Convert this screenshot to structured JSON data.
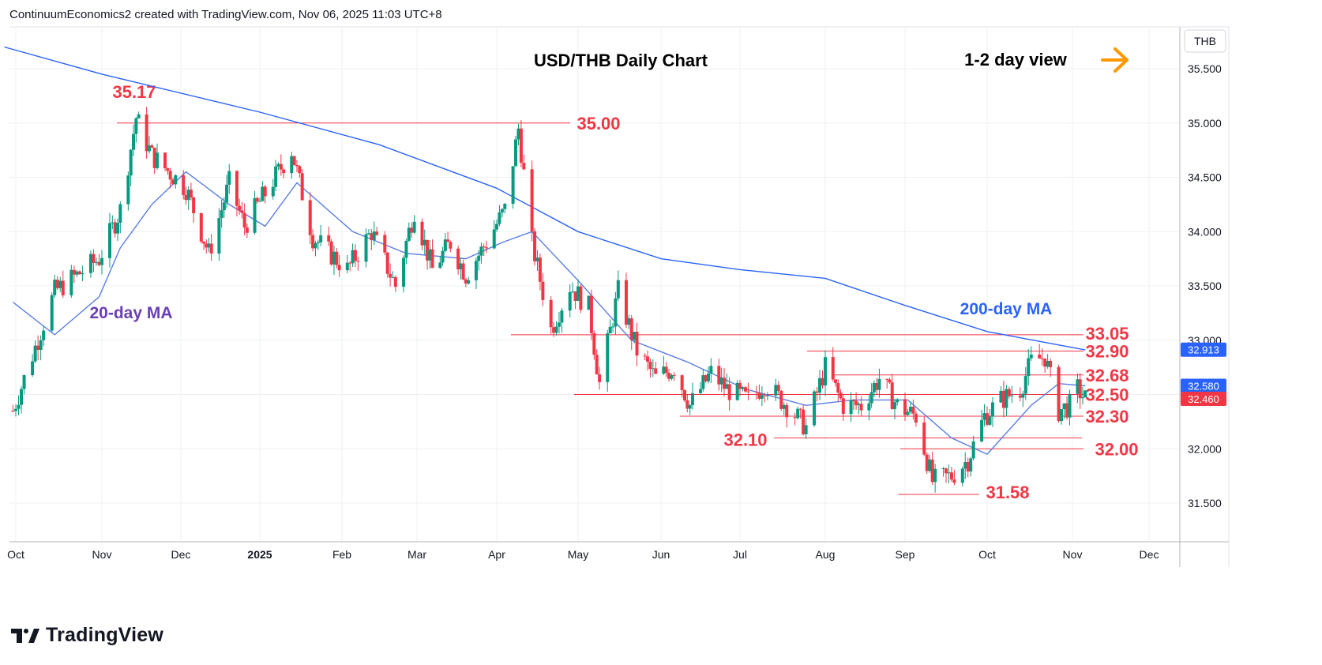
{
  "header": {
    "created_by": "ContinuumEconomics2 created with TradingView.com, Nov 06, 2025 11:03 UTC+8"
  },
  "footer": {
    "brand": "TradingView"
  },
  "colors": {
    "support_resistance": "#f23645",
    "ma200": "#2962ff",
    "ma20": "#5b7ee5",
    "label_20ma": "#6a3fb5",
    "arrow": "#ff9800",
    "up": "#089981",
    "down": "#f23645",
    "grid": "#eef0f3"
  },
  "chart_data": {
    "type": "candlestick",
    "title": "USD/THB Daily Chart",
    "subtitle": "1-2 day view",
    "view_direction_icon": "arrow-right-icon",
    "currency": "THB",
    "ylim": [
      31.2,
      35.9
    ],
    "y_ticks": [
      "35.500",
      "35.000",
      "34.500",
      "34.000",
      "33.500",
      "33.000",
      "32.500",
      "32.000",
      "31.500"
    ],
    "x_ticks": [
      "Oct",
      "Nov",
      "Dec",
      "2025",
      "Feb",
      "Mar",
      "Apr",
      "May",
      "Jun",
      "Jul",
      "Aug",
      "Sep",
      "Oct",
      "Nov",
      "Dec"
    ],
    "grid": true,
    "price_badges": [
      {
        "value": "32.913",
        "color": "#2962ff"
      },
      {
        "value": "32.580",
        "color": "#2962ff"
      },
      {
        "value": "32.460",
        "color": "#f23645"
      }
    ],
    "levels": [
      {
        "label": "35.17",
        "value": 35.17
      },
      {
        "label": "35.00",
        "value": 35.0
      },
      {
        "label": "33.05",
        "value": 33.05
      },
      {
        "label": "32.90",
        "value": 32.9
      },
      {
        "label": "32.68",
        "value": 32.68
      },
      {
        "label": "32.50",
        "value": 32.5
      },
      {
        "label": "32.30",
        "value": 32.3
      },
      {
        "label": "32.10",
        "value": 32.1
      },
      {
        "label": "32.00",
        "value": 32.0
      },
      {
        "label": "31.58",
        "value": 31.58
      }
    ],
    "annotations": {
      "ma20_label": "20-day MA",
      "ma200_label": "200-day MA"
    },
    "closes": [
      {
        "date": "2024-09-30",
        "close": 32.35
      },
      {
        "date": "2024-10-15",
        "close": 33.45
      },
      {
        "date": "2024-10-31",
        "close": 33.75
      },
      {
        "date": "2024-11-08",
        "close": 34.2
      },
      {
        "date": "2024-11-14",
        "close": 35.05
      },
      {
        "date": "2024-11-20",
        "close": 34.7
      },
      {
        "date": "2024-12-03",
        "close": 34.4
      },
      {
        "date": "2024-12-12",
        "close": 33.8
      },
      {
        "date": "2024-12-20",
        "close": 34.45
      },
      {
        "date": "2024-12-26",
        "close": 34.05
      },
      {
        "date": "2025-01-03",
        "close": 34.35
      },
      {
        "date": "2025-01-13",
        "close": 34.75
      },
      {
        "date": "2025-01-21",
        "close": 33.95
      },
      {
        "date": "2025-02-03",
        "close": 33.65
      },
      {
        "date": "2025-02-12",
        "close": 34.0
      },
      {
        "date": "2025-02-21",
        "close": 33.5
      },
      {
        "date": "2025-02-28",
        "close": 34.2
      },
      {
        "date": "2025-03-07",
        "close": 33.65
      },
      {
        "date": "2025-03-14",
        "close": 33.9
      },
      {
        "date": "2025-03-20",
        "close": 33.6
      },
      {
        "date": "2025-03-28",
        "close": 33.9
      },
      {
        "date": "2025-04-04",
        "close": 34.2
      },
      {
        "date": "2025-04-09",
        "close": 34.95
      },
      {
        "date": "2025-04-14",
        "close": 33.9
      },
      {
        "date": "2025-04-21",
        "close": 33.1
      },
      {
        "date": "2025-04-28",
        "close": 33.5
      },
      {
        "date": "2025-05-05",
        "close": 33.3
      },
      {
        "date": "2025-05-09",
        "close": 32.6
      },
      {
        "date": "2025-05-16",
        "close": 33.45
      },
      {
        "date": "2025-05-23",
        "close": 32.9
      },
      {
        "date": "2025-05-30",
        "close": 32.65
      },
      {
        "date": "2025-06-06",
        "close": 32.75
      },
      {
        "date": "2025-06-12",
        "close": 32.4
      },
      {
        "date": "2025-06-20",
        "close": 32.7
      },
      {
        "date": "2025-06-26",
        "close": 32.55
      },
      {
        "date": "2025-07-04",
        "close": 32.45
      },
      {
        "date": "2025-07-10",
        "close": 32.6
      },
      {
        "date": "2025-07-18",
        "close": 32.4
      },
      {
        "date": "2025-07-25",
        "close": 32.2
      },
      {
        "date": "2025-08-01",
        "close": 32.75
      },
      {
        "date": "2025-08-08",
        "close": 32.4
      },
      {
        "date": "2025-08-15",
        "close": 32.4
      },
      {
        "date": "2025-08-22",
        "close": 32.65
      },
      {
        "date": "2025-08-29",
        "close": 32.4
      },
      {
        "date": "2025-09-05",
        "close": 32.3
      },
      {
        "date": "2025-09-11",
        "close": 31.7
      },
      {
        "date": "2025-09-18",
        "close": 31.75
      },
      {
        "date": "2025-09-24",
        "close": 31.9
      },
      {
        "date": "2025-09-30",
        "close": 32.3
      },
      {
        "date": "2025-10-06",
        "close": 32.45
      },
      {
        "date": "2025-10-13",
        "close": 32.55
      },
      {
        "date": "2025-10-17",
        "close": 32.8
      },
      {
        "date": "2025-10-22",
        "close": 32.85
      },
      {
        "date": "2025-10-27",
        "close": 32.35
      },
      {
        "date": "2025-10-31",
        "close": 32.4
      },
      {
        "date": "2025-11-03",
        "close": 32.55
      },
      {
        "date": "2025-11-06",
        "close": 32.46
      }
    ],
    "ma20": [
      {
        "date": "2024-09-30",
        "value": 33.35
      },
      {
        "date": "2024-10-15",
        "value": 33.05
      },
      {
        "date": "2024-10-31",
        "value": 33.4
      },
      {
        "date": "2024-11-08",
        "value": 33.85
      },
      {
        "date": "2024-11-20",
        "value": 34.25
      },
      {
        "date": "2024-12-03",
        "value": 34.55
      },
      {
        "date": "2024-12-20",
        "value": 34.25
      },
      {
        "date": "2025-01-03",
        "value": 34.05
      },
      {
        "date": "2025-01-15",
        "value": 34.45
      },
      {
        "date": "2025-02-05",
        "value": 34.0
      },
      {
        "date": "2025-02-25",
        "value": 33.8
      },
      {
        "date": "2025-03-20",
        "value": 33.75
      },
      {
        "date": "2025-04-03",
        "value": 33.9
      },
      {
        "date": "2025-04-14",
        "value": 34.0
      },
      {
        "date": "2025-05-01",
        "value": 33.55
      },
      {
        "date": "2025-05-21",
        "value": 33.0
      },
      {
        "date": "2025-06-11",
        "value": 32.8
      },
      {
        "date": "2025-07-03",
        "value": 32.55
      },
      {
        "date": "2025-07-25",
        "value": 32.4
      },
      {
        "date": "2025-08-12",
        "value": 32.45
      },
      {
        "date": "2025-09-02",
        "value": 32.45
      },
      {
        "date": "2025-09-18",
        "value": 32.1
      },
      {
        "date": "2025-10-01",
        "value": 31.95
      },
      {
        "date": "2025-10-17",
        "value": 32.4
      },
      {
        "date": "2025-10-27",
        "value": 32.6
      },
      {
        "date": "2025-11-06",
        "value": 32.58
      }
    ],
    "ma200": [
      {
        "date": "2024-09-27",
        "value": 35.7
      },
      {
        "date": "2024-11-01",
        "value": 35.45
      },
      {
        "date": "2025-01-01",
        "value": 35.1
      },
      {
        "date": "2025-02-15",
        "value": 34.8
      },
      {
        "date": "2025-04-01",
        "value": 34.4
      },
      {
        "date": "2025-05-01",
        "value": 34.0
      },
      {
        "date": "2025-06-01",
        "value": 33.75
      },
      {
        "date": "2025-07-01",
        "value": 33.65
      },
      {
        "date": "2025-08-01",
        "value": 33.57
      },
      {
        "date": "2025-09-01",
        "value": 33.32
      },
      {
        "date": "2025-10-01",
        "value": 33.08
      },
      {
        "date": "2025-11-06",
        "value": 32.91
      }
    ]
  }
}
